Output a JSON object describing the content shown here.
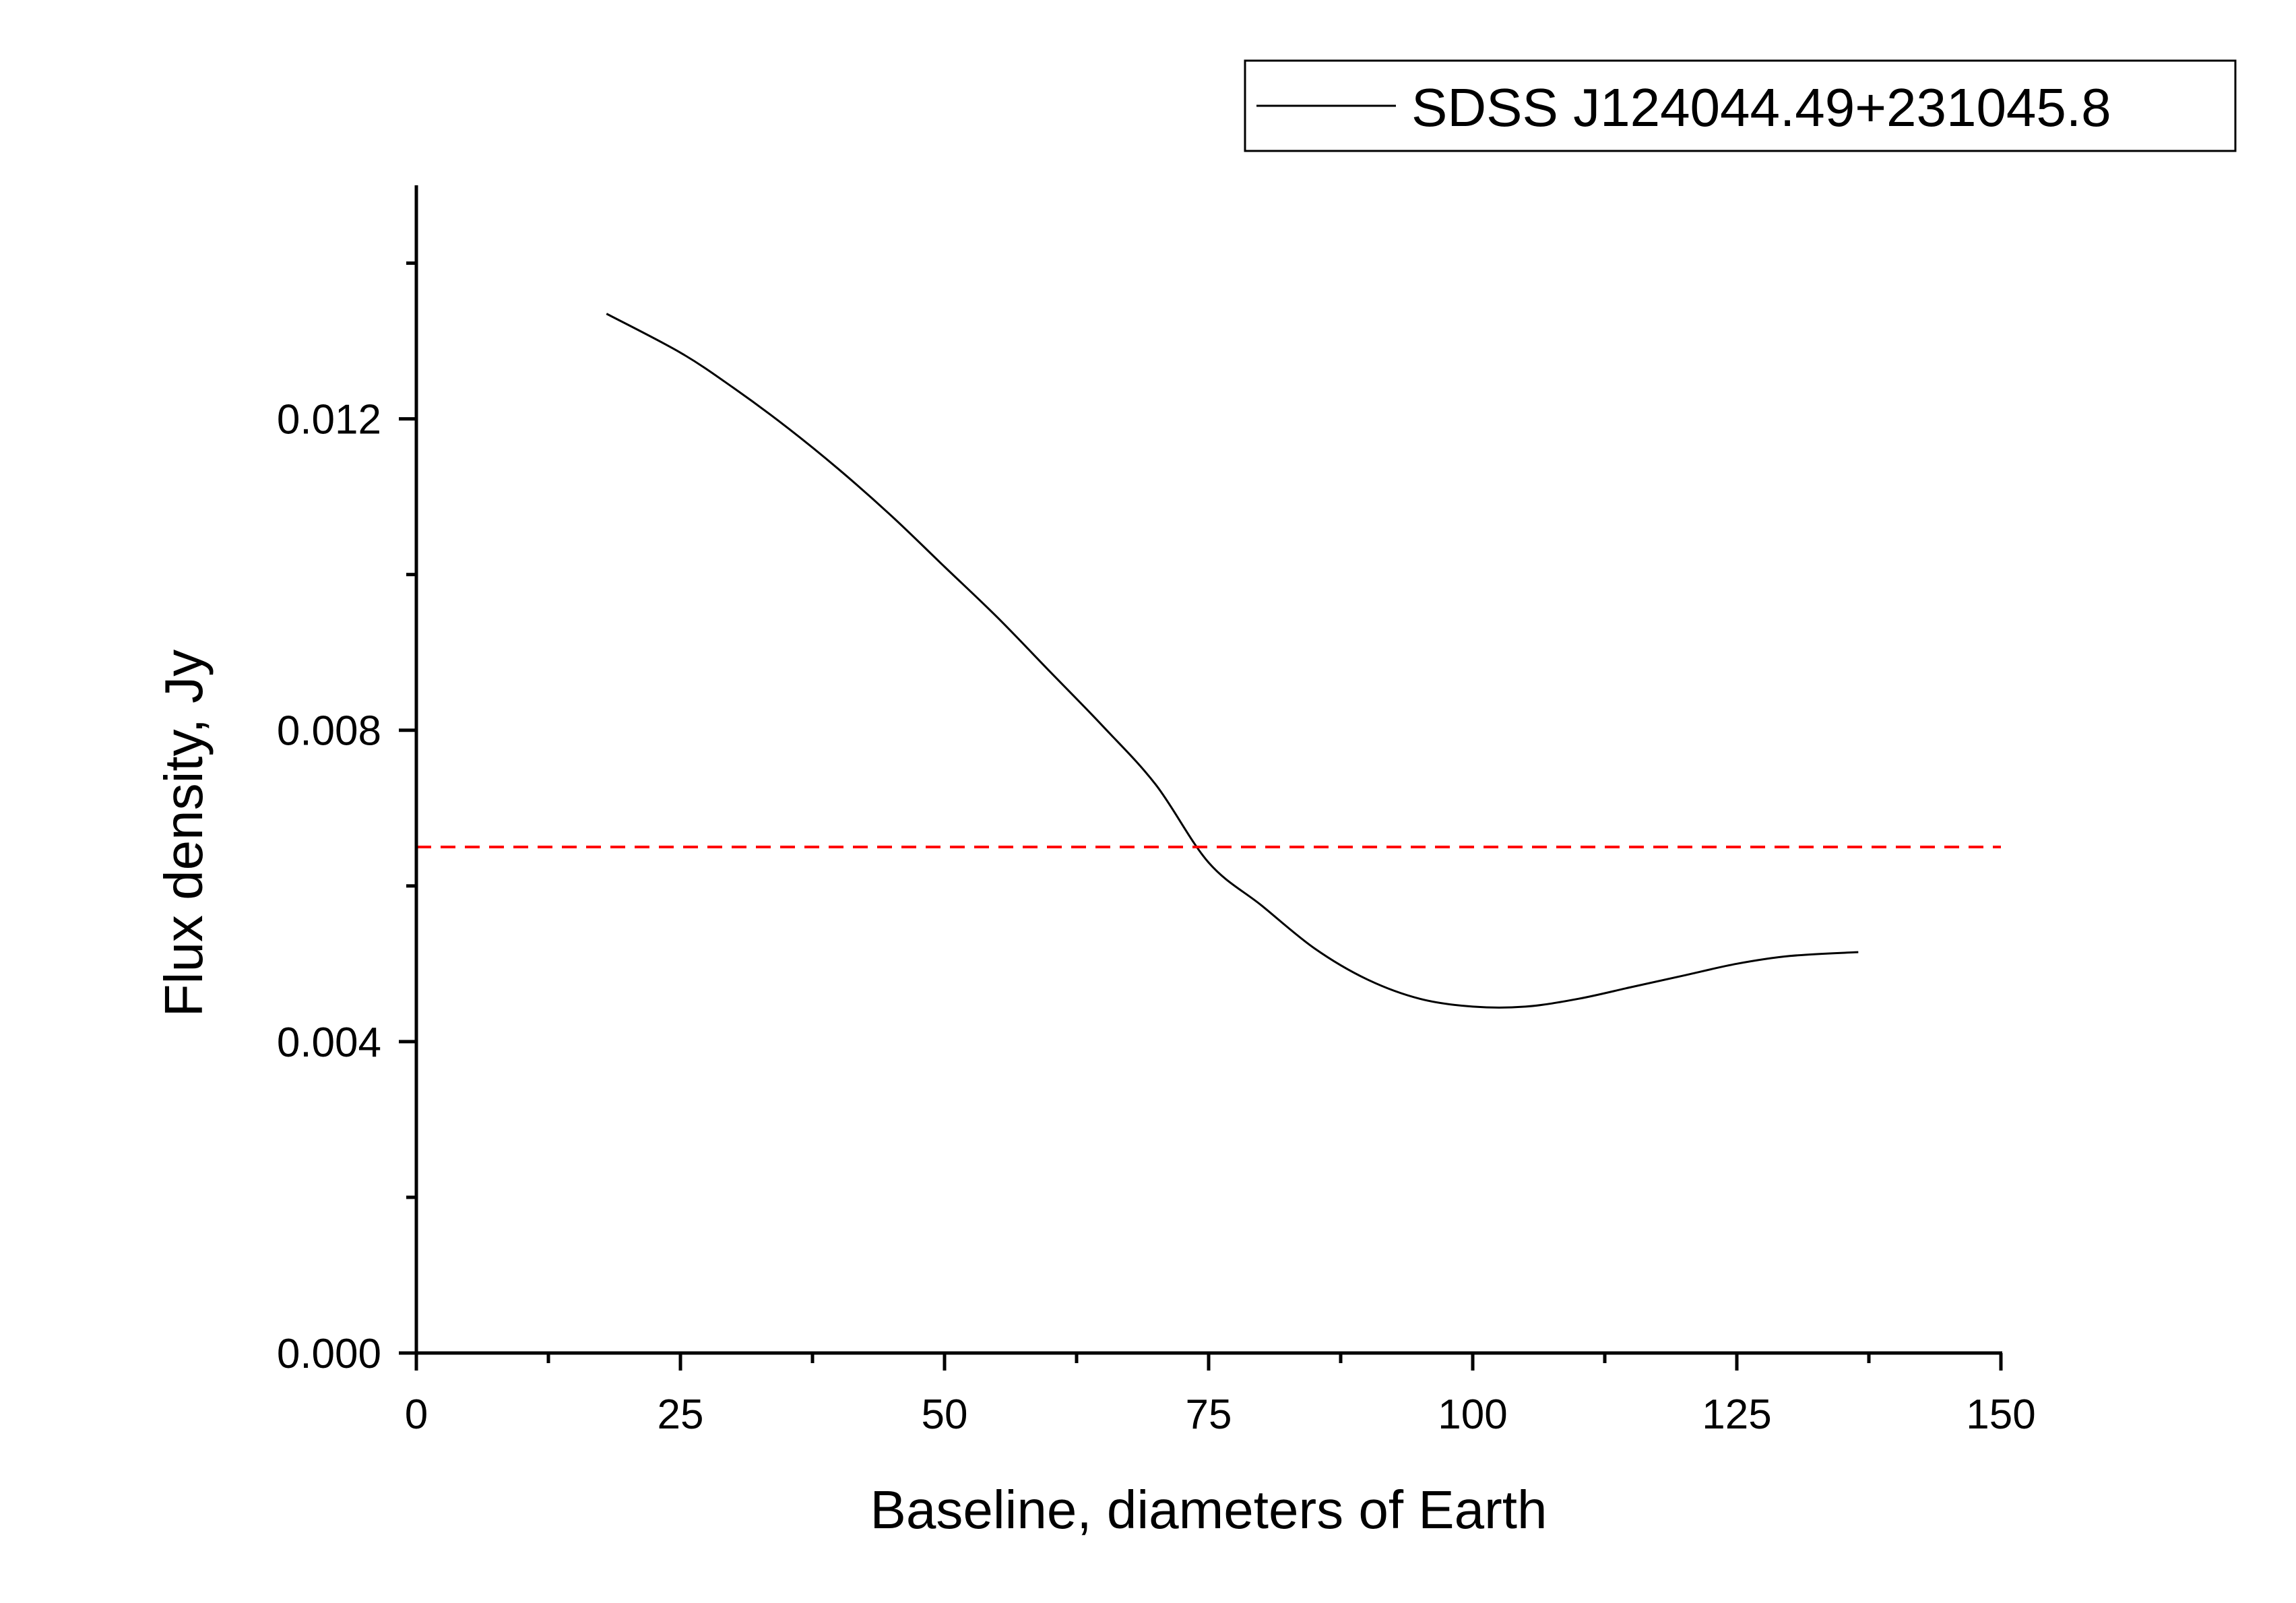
{
  "chart_data": {
    "type": "line",
    "title": "",
    "xlabel": "Baseline, diameters of Earth",
    "ylabel": "Flux density, Jy",
    "xlim": [
      0,
      150
    ],
    "ylim": [
      0,
      0.015
    ],
    "x_ticks": [
      0,
      25,
      50,
      75,
      100,
      125,
      150
    ],
    "x_tick_labels": [
      "0",
      "25",
      "50",
      "75",
      "100",
      "125",
      "150"
    ],
    "x_minor_ticks": [
      12.5,
      37.5,
      62.5,
      87.5,
      112.5,
      137.5
    ],
    "y_ticks": [
      0,
      0.004,
      0.008,
      0.012
    ],
    "y_tick_labels": [
      "0.000",
      "0.004",
      "0.008",
      "0.012"
    ],
    "y_minor_ticks": [
      0.002,
      0.006,
      0.01,
      0.014
    ],
    "grid": false,
    "legend": {
      "position": "top-right",
      "entries": [
        "SDSS J124044.49+231045.8"
      ]
    },
    "series": [
      {
        "name": "SDSS J124044.49+231045.8",
        "color": "#000000",
        "style": "solid",
        "x": [
          18,
          25,
          30,
          35,
          40,
          45,
          50,
          55,
          60,
          65,
          70,
          75,
          80,
          85,
          90,
          95,
          100,
          105,
          110,
          115,
          120,
          125,
          130,
          136.5
        ],
        "y": [
          0.01335,
          0.01285,
          0.0124,
          0.0119,
          0.01135,
          0.01075,
          0.0101,
          0.00945,
          0.00875,
          0.00805,
          0.0073,
          0.0063,
          0.00575,
          0.0052,
          0.0048,
          0.00455,
          0.00445,
          0.00445,
          0.00455,
          0.0047,
          0.00485,
          0.005,
          0.0051,
          0.00515
        ]
      },
      {
        "color": "#ff0000",
        "style": "dashed",
        "x": [
          0,
          150
        ],
        "y": [
          0.0065,
          0.0065
        ]
      }
    ]
  }
}
